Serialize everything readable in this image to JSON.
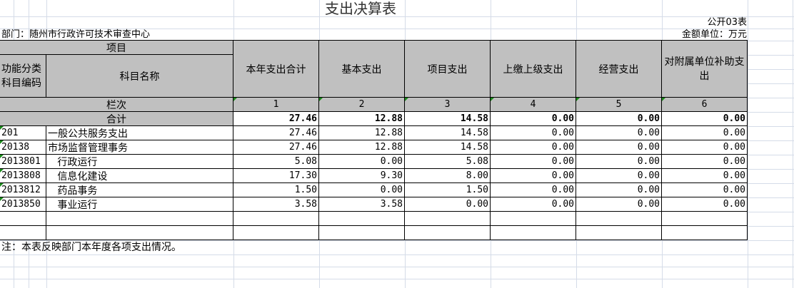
{
  "title": "支出决算表",
  "form_no": "公开03表",
  "department": "部门：随州市行政许可技术审查中心",
  "unit": "金额单位：万元",
  "header": {
    "project": "项目",
    "code": "功能分类科目编码",
    "name": "科目名称",
    "columns": [
      "本年支出合计",
      "基本支出",
      "项目支出",
      "上缴上级支出",
      "经营支出",
      "对附属单位补助支出"
    ],
    "col_index_label": "栏次",
    "col_index": [
      "1",
      "2",
      "3",
      "4",
      "5",
      "6"
    ]
  },
  "total": {
    "label": "合计",
    "values": [
      "27.46",
      "12.88",
      "14.58",
      "0.00",
      "0.00",
      "0.00"
    ]
  },
  "rows": [
    {
      "code": "201",
      "name": "一般公共服务支出",
      "values": [
        "27.46",
        "12.88",
        "14.58",
        "0.00",
        "0.00",
        "0.00"
      ]
    },
    {
      "code": "20138",
      "name": "市场监督管理事务",
      "values": [
        "27.46",
        "12.88",
        "14.58",
        "0.00",
        "0.00",
        "0.00"
      ]
    },
    {
      "code": "2013801",
      "name": "   行政运行",
      "values": [
        "5.08",
        "0.00",
        "5.08",
        "0.00",
        "0.00",
        "0.00"
      ]
    },
    {
      "code": "2013808",
      "name": "   信息化建设",
      "values": [
        "17.30",
        "9.30",
        "8.00",
        "0.00",
        "0.00",
        "0.00"
      ]
    },
    {
      "code": "2013812",
      "name": "   药品事务",
      "values": [
        "1.50",
        "0.00",
        "1.50",
        "0.00",
        "0.00",
        "0.00"
      ]
    },
    {
      "code": "2013850",
      "name": "   事业运行",
      "values": [
        "3.58",
        "3.58",
        "0.00",
        "0.00",
        "0.00",
        "0.00"
      ]
    }
  ],
  "note": "注：本表反映部门本年度各项支出情况。",
  "colors": {
    "header_bg": "#c0c0c0",
    "gridline": "#d5dce8",
    "comment_marker": "#1a8a1a"
  }
}
